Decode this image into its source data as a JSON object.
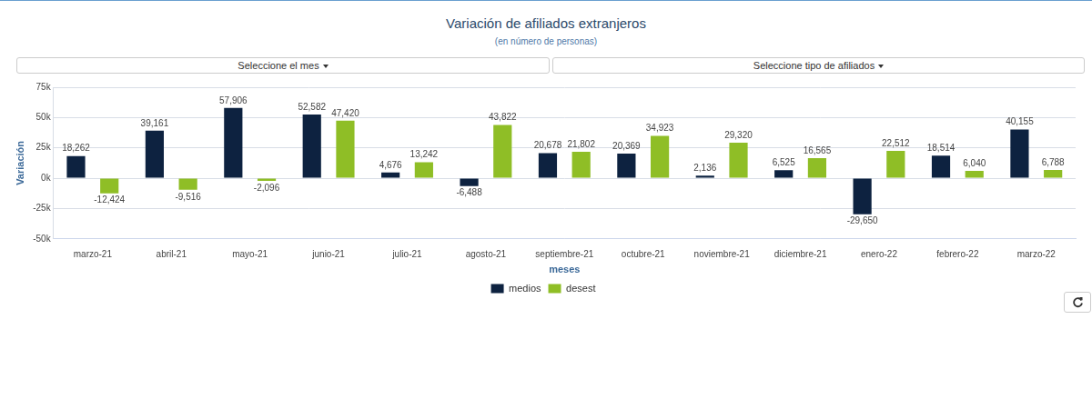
{
  "chart_data": {
    "type": "bar",
    "title": "Variación de afiliados extranjeros",
    "subtitle": "(en número de personas)",
    "x_label": "meses",
    "y_label": "Variación",
    "categories": [
      "marzo-21",
      "abril-21",
      "mayo-21",
      "junio-21",
      "julio-21",
      "agosto-21",
      "septiembre-21",
      "octubre-21",
      "noviembre-21",
      "diciembre-21",
      "enero-22",
      "febrero-22",
      "marzo-22"
    ],
    "series": [
      {
        "name": "medios",
        "color": "#0d2240",
        "values": [
          18262,
          39161,
          57906,
          52582,
          4676,
          -6488,
          20678,
          20369,
          2136,
          6525,
          -29650,
          18514,
          40155
        ],
        "value_labels": [
          "18,262",
          "39,161",
          "57,906",
          "52,582",
          "4,676",
          "-6,488",
          "20,678",
          "20,369",
          "2,136",
          "6,525",
          "-29,650",
          "18,514",
          "40,155"
        ]
      },
      {
        "name": "desest",
        "color": "#8fbe26",
        "values": [
          -12424,
          -9516,
          -2096,
          47420,
          13242,
          43822,
          21802,
          34923,
          29320,
          16565,
          22512,
          6040,
          6788
        ],
        "value_labels": [
          "-12,424",
          "-9,516",
          "-2,096",
          "47,420",
          "13,242",
          "43,822",
          "21,802",
          "34,923",
          "29,320",
          "16,565",
          "22,512",
          "6,040",
          "6,788"
        ]
      }
    ],
    "ylim": [
      -50000,
      75000
    ],
    "yticks": [
      {
        "value": -50000,
        "label": "-50k"
      },
      {
        "value": -25000,
        "label": "-25k"
      },
      {
        "value": 0,
        "label": "0k"
      },
      {
        "value": 25000,
        "label": "25k"
      },
      {
        "value": 50000,
        "label": "50k"
      },
      {
        "value": 75000,
        "label": "75k"
      }
    ],
    "grid": true,
    "legend": "bottom",
    "data_labels": true
  },
  "controls": [
    "Seleccione el mes",
    "Seleccione tipo de afiliados"
  ]
}
